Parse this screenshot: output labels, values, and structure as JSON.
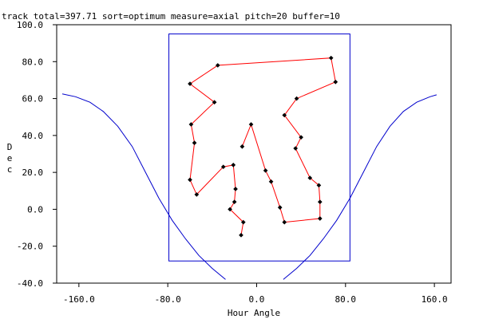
{
  "chart_data": {
    "type": "line",
    "title": "track total=397.71 sort=optimum measure=axial pitch=20 buffer=10",
    "xlabel": "Hour Angle",
    "ylabel": "Dec",
    "xlim": [
      -180,
      175
    ],
    "ylim": [
      -40,
      100
    ],
    "xticks": [
      -160,
      -80,
      0,
      80,
      160
    ],
    "xtick_labels": [
      "-160.0",
      "-80.0",
      "0.0",
      "80.0",
      "160.0"
    ],
    "yticks": [
      -40,
      -20,
      0,
      20,
      40,
      60,
      80,
      100
    ],
    "ytick_labels": [
      "-40.0",
      "-20.0",
      "0.0",
      "20.0",
      "40.0",
      "60.0",
      "80.0",
      "100.0"
    ],
    "colors": {
      "track": "#ff0000",
      "curve": "#0000cc",
      "box": "#0000cc",
      "point": "#000000",
      "axes": "#000000"
    },
    "box": {
      "x": [
        -79,
        84
      ],
      "y": [
        -28,
        95
      ]
    },
    "track": {
      "x": [
        -14,
        -12,
        -24,
        -20,
        -19,
        -21,
        -30,
        -54,
        -60,
        -56,
        -59,
        -38,
        -60,
        -35,
        67,
        71,
        36,
        25,
        40,
        35,
        48,
        56,
        57,
        57,
        25,
        21,
        13,
        8,
        -5,
        -13
      ],
      "y": [
        -14,
        -7,
        0,
        4,
        11,
        24,
        23,
        8,
        16,
        36,
        46,
        58,
        68,
        78,
        82,
        69,
        60,
        51,
        39,
        33,
        17,
        13,
        4,
        -5,
        -7,
        1,
        15,
        21,
        46,
        34
      ]
    },
    "curve_left": {
      "x": [
        -175,
        -163,
        -150,
        -138,
        -125,
        -112,
        -100,
        -88,
        -76,
        -64,
        -52,
        -40,
        -28
      ],
      "y": [
        62.5,
        61,
        58,
        53,
        45,
        34,
        20,
        6,
        -6,
        -16,
        -25,
        -32,
        -38
      ]
    },
    "curve_right": {
      "x": [
        24,
        36,
        48,
        60,
        72,
        84,
        96,
        108,
        120,
        132,
        144,
        156,
        162
      ],
      "y": [
        -38,
        -32,
        -25,
        -16,
        -6,
        6,
        20,
        34,
        45,
        53,
        58,
        61,
        62
      ]
    }
  }
}
